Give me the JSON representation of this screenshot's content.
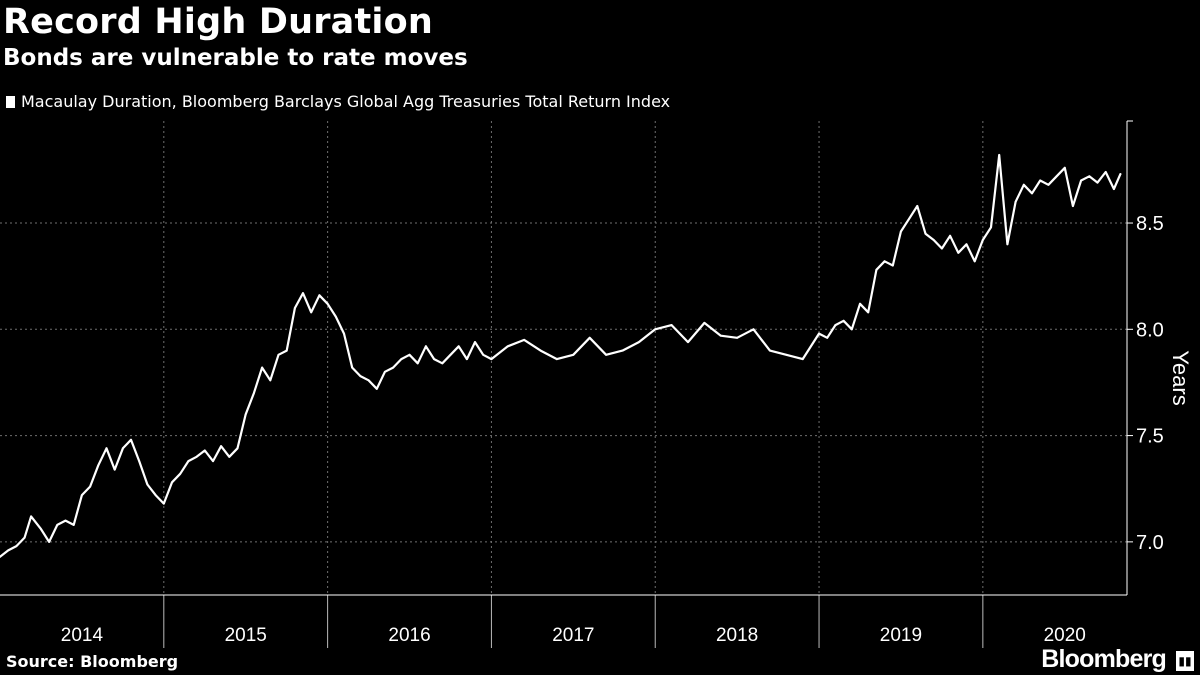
{
  "header": {
    "title": "Record High Duration",
    "subtitle": "Bonds are vulnerable to rate moves"
  },
  "legend": {
    "label": "Macaulay Duration, Bloomberg Barclays Global Agg Treasuries Total Return Index"
  },
  "footer": {
    "source": "Source: Bloomberg",
    "brand": "Bloomberg"
  },
  "colors": {
    "background": "#000000",
    "line": "#ffffff",
    "grid": "#6f6f6f"
  },
  "chart_data": {
    "type": "line",
    "title": "Record High Duration",
    "subtitle": "Bonds are vulnerable to rate moves",
    "ylabel": "Years",
    "xlabel": "",
    "ylim": [
      6.75,
      8.98
    ],
    "xlim": [
      2014.0,
      2020.88
    ],
    "yticks": [
      7.0,
      7.5,
      8.0,
      8.5
    ],
    "ytick_labels": [
      "7.0",
      "7.5",
      "8.0",
      "8.5"
    ],
    "xtick_labels": [
      "2014",
      "2015",
      "2016",
      "2017",
      "2018",
      "2019",
      "2020"
    ],
    "xtick_positions": [
      2014.5,
      2015.5,
      2016.5,
      2017.5,
      2018.5,
      2019.5,
      2020.5
    ],
    "grid": true,
    "series": [
      {
        "name": "Macaulay Duration, Bloomberg Barclays Global Agg Treasuries Total Return Index",
        "x": [
          2014.0,
          2014.05,
          2014.1,
          2014.15,
          2014.19,
          2014.25,
          2014.3,
          2014.35,
          2014.4,
          2014.45,
          2014.5,
          2014.55,
          2014.6,
          2014.65,
          2014.7,
          2014.75,
          2014.8,
          2014.85,
          2014.9,
          2014.95,
          2015.0,
          2015.05,
          2015.1,
          2015.15,
          2015.2,
          2015.25,
          2015.3,
          2015.35,
          2015.4,
          2015.45,
          2015.5,
          2015.55,
          2015.6,
          2015.65,
          2015.7,
          2015.75,
          2015.8,
          2015.85,
          2015.9,
          2015.95,
          2016.0,
          2016.05,
          2016.1,
          2016.15,
          2016.2,
          2016.25,
          2016.3,
          2016.35,
          2016.4,
          2016.45,
          2016.5,
          2016.55,
          2016.6,
          2016.65,
          2016.7,
          2016.75,
          2016.8,
          2016.85,
          2016.9,
          2016.95,
          2017.0,
          2017.1,
          2017.2,
          2017.3,
          2017.4,
          2017.5,
          2017.6,
          2017.7,
          2017.8,
          2017.9,
          2018.0,
          2018.1,
          2018.2,
          2018.3,
          2018.4,
          2018.5,
          2018.6,
          2018.7,
          2018.8,
          2018.9,
          2019.0,
          2019.05,
          2019.1,
          2019.15,
          2019.2,
          2019.25,
          2019.3,
          2019.35,
          2019.4,
          2019.45,
          2019.5,
          2019.55,
          2019.6,
          2019.65,
          2019.7,
          2019.75,
          2019.8,
          2019.85,
          2019.9,
          2019.95,
          2020.0,
          2020.05,
          2020.1,
          2020.15,
          2020.2,
          2020.25,
          2020.3,
          2020.35,
          2020.4,
          2020.45,
          2020.5,
          2020.55,
          2020.6,
          2020.65,
          2020.7,
          2020.75,
          2020.8,
          2020.84
        ],
        "values": [
          6.93,
          6.96,
          6.98,
          7.02,
          7.12,
          7.06,
          7.0,
          7.08,
          7.1,
          7.08,
          7.22,
          7.26,
          7.36,
          7.44,
          7.34,
          7.44,
          7.48,
          7.38,
          7.27,
          7.22,
          7.18,
          7.28,
          7.32,
          7.38,
          7.4,
          7.43,
          7.38,
          7.45,
          7.4,
          7.44,
          7.6,
          7.7,
          7.82,
          7.76,
          7.88,
          7.9,
          8.1,
          8.17,
          8.08,
          8.16,
          8.12,
          8.06,
          7.98,
          7.82,
          7.78,
          7.76,
          7.72,
          7.8,
          7.82,
          7.86,
          7.88,
          7.84,
          7.92,
          7.86,
          7.84,
          7.88,
          7.92,
          7.86,
          7.94,
          7.88,
          7.86,
          7.92,
          7.95,
          7.9,
          7.86,
          7.88,
          7.96,
          7.88,
          7.9,
          7.94,
          8.0,
          8.02,
          7.94,
          8.03,
          7.97,
          7.96,
          8.0,
          7.9,
          7.88,
          7.86,
          7.98,
          7.96,
          8.02,
          8.04,
          8.0,
          8.12,
          8.08,
          8.28,
          8.32,
          8.3,
          8.46,
          8.52,
          8.58,
          8.45,
          8.42,
          8.38,
          8.44,
          8.36,
          8.4,
          8.32,
          8.42,
          8.48,
          8.82,
          8.4,
          8.6,
          8.68,
          8.64,
          8.7,
          8.68,
          8.72,
          8.76,
          8.58,
          8.7,
          8.72,
          8.69,
          8.74,
          8.66,
          8.73
        ]
      }
    ]
  }
}
